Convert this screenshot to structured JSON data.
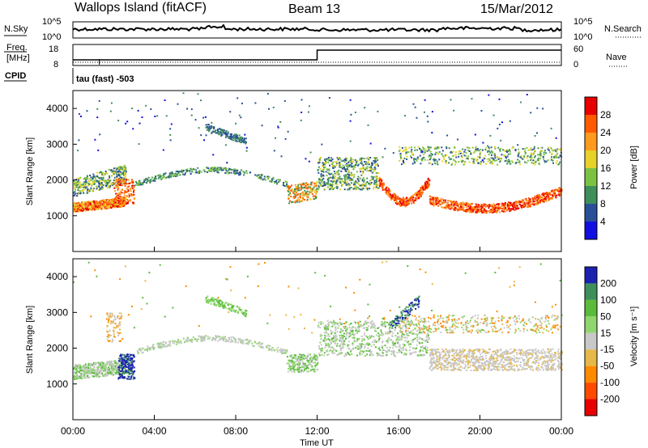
{
  "header": {
    "station": "Wallops Island (fitACF)",
    "beam": "Beam 13",
    "date": "15/Mar/2012"
  },
  "top_panels": {
    "nsky_label": "N.Sky",
    "nsky_ticks": [
      "10^5",
      "10^0"
    ],
    "nsearch_label": "N.Search",
    "nsearch_ticks": [
      "10^5",
      "10^0"
    ],
    "freq_label_1": "Freq.",
    "freq_label_2": "[MHz]",
    "freq_ticks": [
      "18",
      "8"
    ],
    "nave_label": "Nave",
    "nave_ticks": [
      "60",
      "0"
    ],
    "cpid_label": "CPID",
    "cpid_text": "tau (fast) -503"
  },
  "chart_data": [
    {
      "type": "heatmap",
      "name": "power",
      "ylabel": "Slant Range [km]",
      "ylim": [
        0,
        4500
      ],
      "yticks": [
        "1000",
        "2000",
        "3000",
        "4000"
      ],
      "xlim_hours": [
        0,
        24
      ],
      "colorbar_label": "Power [dB]",
      "colorbar_ticks": [
        "28",
        "24",
        "20",
        "16",
        "12",
        "8",
        "4"
      ],
      "colorbar_colors": [
        "#e80000",
        "#ff5a00",
        "#ff9a1e",
        "#e6d22a",
        "#7cc242",
        "#3f8f5a",
        "#2a4f99",
        "#1010e0"
      ],
      "features": [
        {
          "desc": "band",
          "t_start": 0.0,
          "t_end": 2.8,
          "range_start": 1150,
          "range_end": 1400,
          "level_db": 22
        },
        {
          "desc": "band",
          "t_start": 20.0,
          "t_end": 24.0,
          "range_start": 1100,
          "range_end": 1900,
          "level_db": 26
        }
      ]
    },
    {
      "type": "heatmap",
      "name": "velocity",
      "ylabel": "Slant Range [km]",
      "ylim": [
        0,
        4500
      ],
      "yticks": [
        "1000",
        "2000",
        "3000",
        "4000"
      ],
      "xlim_hours": [
        0,
        24
      ],
      "colorbar_label": "Velocity [m s⁻¹]",
      "colorbar_ticks": [
        "200",
        "100",
        "50",
        "15",
        "-15",
        "-50",
        "-100",
        "-200"
      ],
      "colorbar_colors": [
        "#1b22b0",
        "#3f8f5a",
        "#5bbb3a",
        "#8fd66f",
        "#c8c8c8",
        "#e6b84a",
        "#ff8a00",
        "#ff4a00",
        "#e80000"
      ]
    }
  ],
  "xaxis": {
    "ticks": [
      "00:00",
      "04:00",
      "08:00",
      "12:00",
      "16:00",
      "20:00",
      "00:00"
    ],
    "label": "Time UT"
  }
}
